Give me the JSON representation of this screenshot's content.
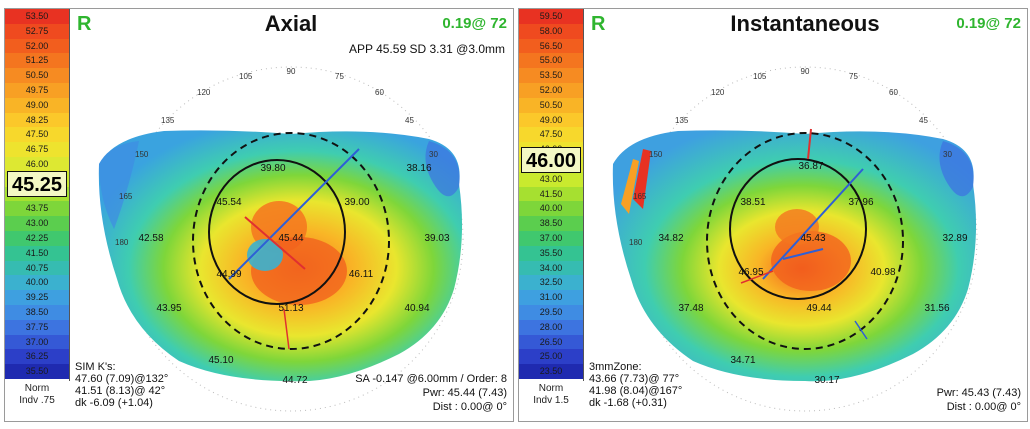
{
  "axial": {
    "eye": "R",
    "title": "Axial",
    "meta": "0.19@ 72",
    "apex": "APP 45.59 SD 3.31 @3.0mm",
    "scale": [
      "53.50",
      "52.75",
      "52.00",
      "51.25",
      "50.50",
      "49.75",
      "49.00",
      "48.25",
      "47.50",
      "46.75",
      "46.00",
      "45.25",
      "44.50",
      "43.75",
      "43.00",
      "42.25",
      "41.50",
      "40.75",
      "40.00",
      "39.25",
      "38.50",
      "37.75",
      "37.00",
      "36.25",
      "35.50"
    ],
    "scale_colors": [
      "#e83222",
      "#ef4a1f",
      "#f25e1e",
      "#f4751f",
      "#f68b22",
      "#f8a024",
      "#f9b426",
      "#fbc82a",
      "#f7d82c",
      "#eee32e",
      "#dde832",
      "#c9ea2e",
      "#a6e030",
      "#7ed63a",
      "#5bce4e",
      "#40c86e",
      "#34c392",
      "#36bcb1",
      "#3bb1cf",
      "#3ea0e0",
      "#3f8ce3",
      "#3d74e0",
      "#3559d6",
      "#2c3fc8",
      "#1f2ab0"
    ],
    "current": "45.25",
    "scale_foot": [
      "Norm",
      "Indv .75"
    ],
    "sim_k": [
      "SIM K's:",
      "47.60 (7.09)@132°",
      "41.51 (8.13)@ 42°",
      "dk -6.09 (+1.04)"
    ],
    "sa": "SA -0.147 @6.00mm / Order: 8",
    "pwr": "Pwr:  45.44 (7.43)",
    "dist": "Dist :  0.00@  0°",
    "labels": [
      "39.80",
      "45.54",
      "39.00",
      "38.16",
      "42.58",
      "45.44",
      "39.03",
      "44.99",
      "46.11",
      "43.95",
      "51.13",
      "40.94",
      "45.10",
      "44.72"
    ],
    "angles": [
      "90",
      "75",
      "60",
      "45",
      "30",
      "105",
      "120",
      "135",
      "150",
      "165",
      "180"
    ]
  },
  "inst": {
    "eye": "R",
    "title": "Instantaneous",
    "meta": "0.19@ 72",
    "scale": [
      "59.50",
      "58.00",
      "56.50",
      "55.00",
      "53.50",
      "52.00",
      "50.50",
      "49.00",
      "47.50",
      "46.00",
      "44.50",
      "43.00",
      "41.50",
      "40.00",
      "38.50",
      "37.00",
      "35.50",
      "34.00",
      "32.50",
      "31.00",
      "29.50",
      "28.00",
      "26.50",
      "25.00",
      "23.50"
    ],
    "scale_colors": [
      "#e83222",
      "#ef4a1f",
      "#f25e1e",
      "#f4751f",
      "#f68b22",
      "#f8a024",
      "#f9b426",
      "#fbc82a",
      "#f7d82c",
      "#eee32e",
      "#dde832",
      "#c9ea2e",
      "#a6e030",
      "#7ed63a",
      "#5bce4e",
      "#40c86e",
      "#34c392",
      "#36bcb1",
      "#3bb1cf",
      "#3ea0e0",
      "#3f8ce3",
      "#3d74e0",
      "#3559d6",
      "#2c3fc8",
      "#1f2ab0"
    ],
    "current": "46.00",
    "scale_foot": [
      "Norm",
      "Indv 1.5"
    ],
    "zone": [
      "3mmZone:",
      "43.66 (7.73)@ 77°",
      "41.98 (8.04)@167°",
      "dk -1.68 (+0.31)"
    ],
    "pwr": "Pwr:  45.43 (7.43)",
    "dist": "Dist :  0.00@  0°",
    "labels": [
      "36.87",
      "38.51",
      "37.96",
      "34.82",
      "45.43",
      "32.89",
      "46.95",
      "40.98",
      "37.48",
      "49.44",
      "31.56",
      "34.71",
      "30.17"
    ],
    "angles": [
      "90",
      "75",
      "60",
      "45",
      "30",
      "105",
      "120",
      "135",
      "150",
      "165",
      "180"
    ]
  }
}
